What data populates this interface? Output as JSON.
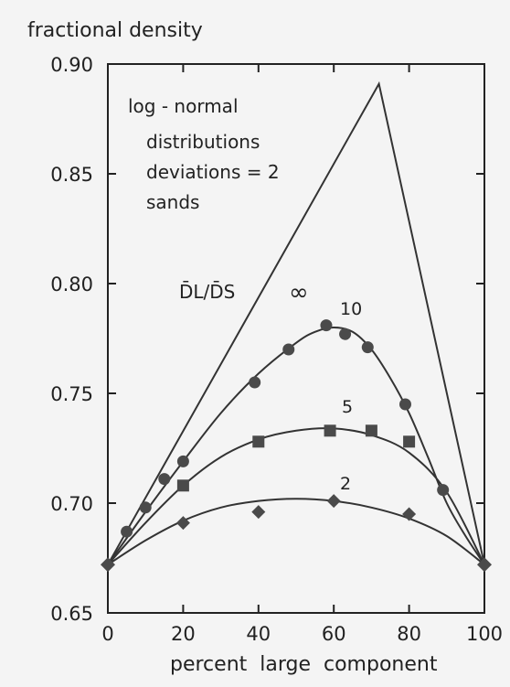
{
  "chart_data": {
    "type": "line",
    "ylabel": "fractional density",
    "xlabel": "percent  large  component",
    "xlim": [
      0,
      100
    ],
    "ylim": [
      0.65,
      0.9
    ],
    "xticks": [
      "0",
      "20",
      "40",
      "60",
      "80",
      "100"
    ],
    "yticks": [
      "0.65",
      "0.70",
      "0.75",
      "0.80",
      "0.85",
      "0.90"
    ],
    "annotation": [
      "log - normal",
      "distributions",
      "deviations = 2",
      "sands"
    ],
    "ratio_label_main": "D̄L/D̄S",
    "grid": false,
    "series": [
      {
        "name": "∞",
        "marker": "none",
        "curve": [
          [
            0,
            0.672
          ],
          [
            72,
            0.891
          ],
          [
            100,
            0.672
          ]
        ],
        "points": []
      },
      {
        "name": "10",
        "marker": "circle",
        "curve": [
          [
            0,
            0.672
          ],
          [
            10,
            0.696
          ],
          [
            20,
            0.719
          ],
          [
            30,
            0.741
          ],
          [
            40,
            0.759
          ],
          [
            50,
            0.773
          ],
          [
            55,
            0.778
          ],
          [
            60,
            0.78
          ],
          [
            65,
            0.778
          ],
          [
            70,
            0.77
          ],
          [
            75,
            0.757
          ],
          [
            80,
            0.741
          ],
          [
            85,
            0.721
          ],
          [
            90,
            0.7
          ],
          [
            95,
            0.685
          ],
          [
            100,
            0.672
          ]
        ],
        "points": [
          [
            0,
            0.672
          ],
          [
            5,
            0.687
          ],
          [
            10,
            0.698
          ],
          [
            15,
            0.711
          ],
          [
            20,
            0.719
          ],
          [
            39,
            0.755
          ],
          [
            48,
            0.77
          ],
          [
            58,
            0.781
          ],
          [
            63,
            0.777
          ],
          [
            69,
            0.771
          ],
          [
            79,
            0.745
          ],
          [
            89,
            0.706
          ],
          [
            100,
            0.672
          ]
        ]
      },
      {
        "name": "5",
        "marker": "square",
        "curve": [
          [
            0,
            0.672
          ],
          [
            10,
            0.691
          ],
          [
            20,
            0.708
          ],
          [
            30,
            0.721
          ],
          [
            40,
            0.729
          ],
          [
            50,
            0.733
          ],
          [
            60,
            0.734
          ],
          [
            70,
            0.731
          ],
          [
            80,
            0.723
          ],
          [
            90,
            0.705
          ],
          [
            100,
            0.672
          ]
        ],
        "points": [
          [
            20,
            0.708
          ],
          [
            40,
            0.728
          ],
          [
            59,
            0.733
          ],
          [
            70,
            0.733
          ],
          [
            80,
            0.728
          ]
        ]
      },
      {
        "name": "2",
        "marker": "diamond",
        "curve": [
          [
            0,
            0.672
          ],
          [
            10,
            0.683
          ],
          [
            20,
            0.692
          ],
          [
            30,
            0.698
          ],
          [
            40,
            0.701
          ],
          [
            50,
            0.702
          ],
          [
            60,
            0.701
          ],
          [
            70,
            0.698
          ],
          [
            80,
            0.693
          ],
          [
            90,
            0.685
          ],
          [
            100,
            0.672
          ]
        ],
        "points": [
          [
            20,
            0.691
          ],
          [
            40,
            0.696
          ],
          [
            60,
            0.701
          ],
          [
            80,
            0.695
          ]
        ]
      }
    ]
  }
}
